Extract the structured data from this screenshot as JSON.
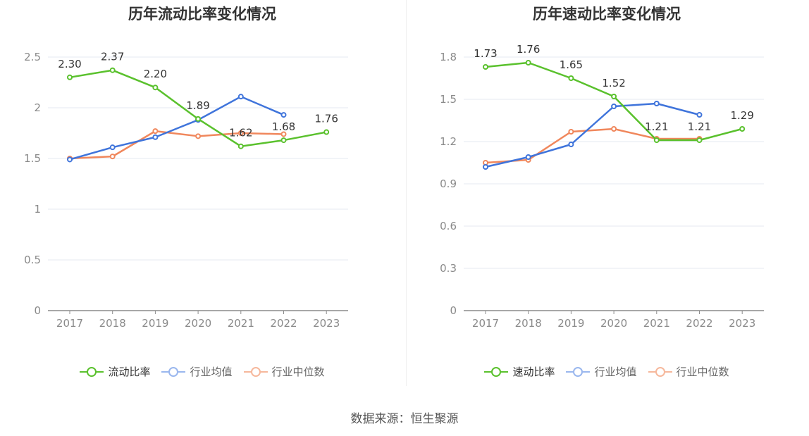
{
  "source_text": "数据来源：恒生聚源",
  "chart_data": [
    {
      "type": "line",
      "title": "历年流动比率变化情况",
      "categories": [
        "2017",
        "2018",
        "2019",
        "2020",
        "2021",
        "2022",
        "2023"
      ],
      "ylim": [
        0,
        2.5
      ],
      "yticks": [
        "0",
        "0.5",
        "1",
        "1.5",
        "2",
        "2.5"
      ],
      "ytick_values": [
        0,
        0.5,
        1,
        1.5,
        2,
        2.5
      ],
      "grid": true,
      "legend_position": "bottom-center",
      "series": [
        {
          "name": "流动比率",
          "color": "#5ac12d",
          "values": [
            2.3,
            2.37,
            2.2,
            1.89,
            1.62,
            1.68,
            1.76
          ],
          "labels": [
            "2.30",
            "2.37",
            "2.20",
            "1.89",
            "1.62",
            "1.68",
            "1.76"
          ]
        },
        {
          "name": "行业均值",
          "color": "#3f74db",
          "values": [
            1.49,
            1.61,
            1.71,
            1.88,
            2.11,
            1.93,
            null
          ]
        },
        {
          "name": "行业中位数",
          "color": "#f0875c",
          "values": [
            1.5,
            1.52,
            1.77,
            1.72,
            1.75,
            1.74,
            null
          ]
        }
      ]
    },
    {
      "type": "line",
      "title": "历年速动比率变化情况",
      "categories": [
        "2017",
        "2018",
        "2019",
        "2020",
        "2021",
        "2022",
        "2023"
      ],
      "ylim": [
        0,
        1.8
      ],
      "yticks": [
        "0",
        "0.3",
        "0.6",
        "0.9",
        "1.2",
        "1.5",
        "1.8"
      ],
      "ytick_values": [
        0,
        0.3,
        0.6,
        0.9,
        1.2,
        1.5,
        1.8
      ],
      "grid": true,
      "legend_position": "bottom-center",
      "series": [
        {
          "name": "速动比率",
          "color": "#5ac12d",
          "values": [
            1.73,
            1.76,
            1.65,
            1.52,
            1.21,
            1.21,
            1.29
          ],
          "labels": [
            "1.73",
            "1.76",
            "1.65",
            "1.52",
            "1.21",
            "1.21",
            "1.29"
          ]
        },
        {
          "name": "行业均值",
          "color": "#3f74db",
          "values": [
            1.02,
            1.09,
            1.18,
            1.45,
            1.47,
            1.39,
            null
          ]
        },
        {
          "name": "行业中位数",
          "color": "#f0875c",
          "values": [
            1.05,
            1.07,
            1.27,
            1.29,
            1.22,
            1.22,
            null
          ]
        }
      ]
    }
  ]
}
